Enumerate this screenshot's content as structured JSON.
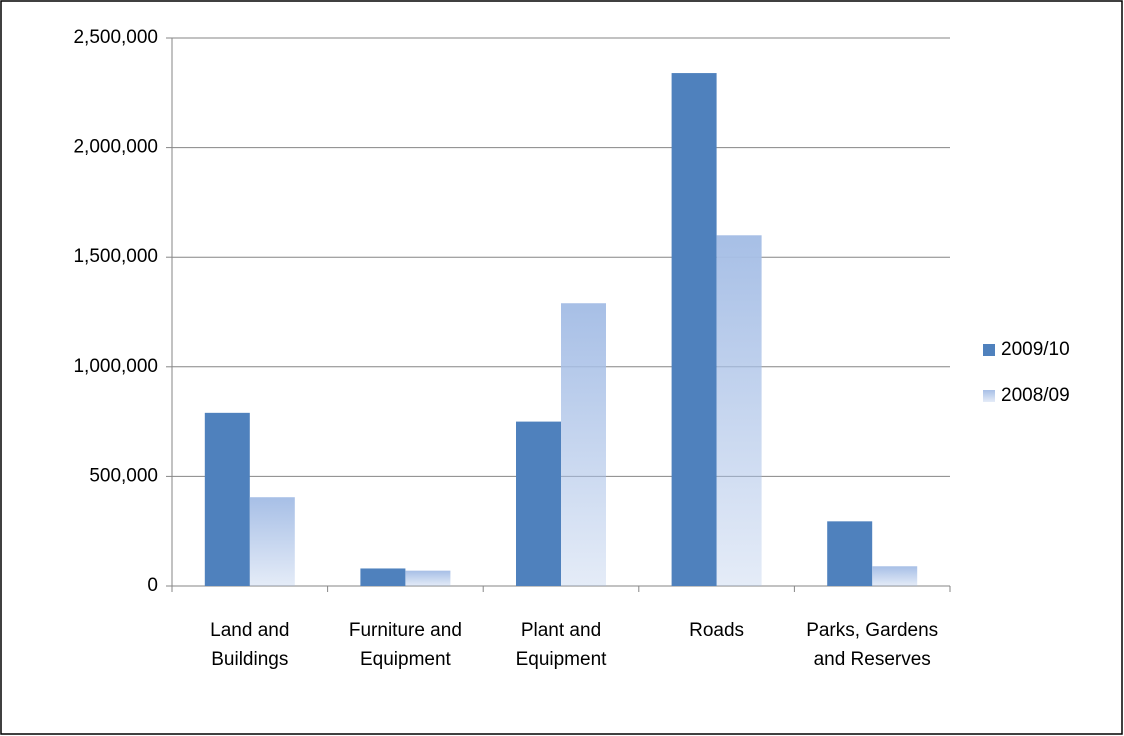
{
  "chart_data": {
    "type": "bar",
    "categories": [
      "Land and Buildings",
      "Furniture and Equipment",
      "Plant and Equipment",
      "Roads",
      "Parks, Gardens and Reserves"
    ],
    "series": [
      {
        "name": "2009/10",
        "color": "#4f81bd",
        "values": [
          790000,
          80000,
          750000,
          2340000,
          295000
        ]
      },
      {
        "name": "2008/09",
        "color": "#a7bfe6",
        "values": [
          405000,
          70000,
          1290000,
          1600000,
          90000
        ]
      }
    ],
    "ylim": [
      0,
      2500000
    ],
    "yticks": [
      0,
      {
        "value": 500000,
        "label": "500,000"
      },
      {
        "value": 1000000,
        "label": "1,000,000"
      },
      {
        "value": 1500000,
        "label": "1,500,000"
      },
      {
        "value": 2000000,
        "label": "2,000,000"
      },
      {
        "value": 2500000,
        "label": "2,500,000"
      }
    ],
    "grid": true,
    "legend": "right"
  }
}
